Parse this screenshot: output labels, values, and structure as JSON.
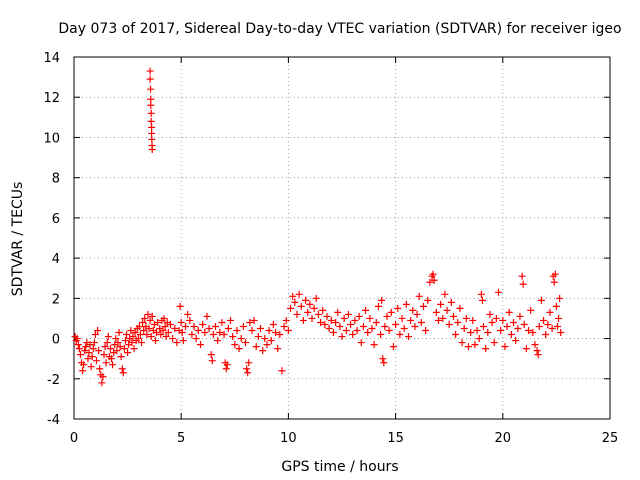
{
  "chart_data": {
    "type": "scatter",
    "title": "Day 073 of 2017, Sidereal Day-to-day VTEC variation (SDTVAR) for receiver igeo",
    "xlabel": "GPS time / hours",
    "ylabel": "SDTVAR / TECUs",
    "xlim": [
      0,
      25
    ],
    "ylim": [
      -4,
      14
    ],
    "xticks": [
      "0",
      "5",
      "10",
      "15",
      "20",
      "25"
    ],
    "yticks": [
      "-4",
      "-2",
      "0",
      "2",
      "4",
      "6",
      "8",
      "10",
      "12",
      "14"
    ],
    "grid": true,
    "marker": "+",
    "color": "#ff0000",
    "series": [
      {
        "name": "SDTVAR",
        "points": [
          [
            0.05,
            0.1
          ],
          [
            0.1,
            -0.1
          ],
          [
            0.15,
            0.0
          ],
          [
            0.2,
            -0.3
          ],
          [
            0.25,
            -0.5
          ],
          [
            0.3,
            -0.8
          ],
          [
            0.35,
            -1.2
          ],
          [
            0.4,
            -1.6
          ],
          [
            0.45,
            -1.3
          ],
          [
            0.5,
            -0.6
          ],
          [
            0.55,
            -0.4
          ],
          [
            0.6,
            -0.2
          ],
          [
            0.65,
            -1.0
          ],
          [
            0.7,
            -0.7
          ],
          [
            0.75,
            -0.3
          ],
          [
            0.8,
            -1.4
          ],
          [
            0.85,
            -0.9
          ],
          [
            0.9,
            -0.5
          ],
          [
            0.95,
            -0.2
          ],
          [
            1.0,
            0.2
          ],
          [
            1.05,
            -1.1
          ],
          [
            1.1,
            0.4
          ],
          [
            1.15,
            -0.6
          ],
          [
            1.2,
            -1.5
          ],
          [
            1.25,
            -1.8
          ],
          [
            1.3,
            -2.2
          ],
          [
            1.35,
            -1.9
          ],
          [
            1.4,
            -0.8
          ],
          [
            1.45,
            -0.4
          ],
          [
            1.5,
            -1.2
          ],
          [
            1.55,
            -0.2
          ],
          [
            1.6,
            0.1
          ],
          [
            1.65,
            -0.9
          ],
          [
            1.7,
            -0.5
          ],
          [
            1.75,
            -1.0
          ],
          [
            1.8,
            -1.3
          ],
          [
            1.85,
            -0.7
          ],
          [
            1.9,
            -0.3
          ],
          [
            1.95,
            0.0
          ],
          [
            2.0,
            -0.6
          ],
          [
            2.05,
            -0.2
          ],
          [
            2.1,
            0.3
          ],
          [
            2.15,
            -0.4
          ],
          [
            2.2,
            -0.9
          ],
          [
            2.25,
            -1.5
          ],
          [
            2.3,
            -1.7
          ],
          [
            2.35,
            -0.5
          ],
          [
            2.4,
            -0.1
          ],
          [
            2.45,
            0.2
          ],
          [
            2.5,
            -0.7
          ],
          [
            2.55,
            -0.3
          ],
          [
            2.6,
            0.0
          ],
          [
            2.65,
            0.4
          ],
          [
            2.7,
            -0.2
          ],
          [
            2.75,
            0.1
          ],
          [
            2.8,
            -0.5
          ],
          [
            2.85,
            0.3
          ],
          [
            2.9,
            -0.1
          ],
          [
            2.95,
            0.5
          ],
          [
            3.0,
            0.0
          ],
          [
            3.05,
            0.6
          ],
          [
            3.1,
            0.2
          ],
          [
            3.15,
            -0.2
          ],
          [
            3.2,
            0.8
          ],
          [
            3.25,
            0.4
          ],
          [
            3.3,
            1.0
          ],
          [
            3.35,
            0.6
          ],
          [
            3.4,
            0.2
          ],
          [
            3.45,
            1.2
          ],
          [
            3.5,
            0.5
          ],
          [
            3.55,
            0.9
          ],
          [
            3.6,
            0.1
          ],
          [
            3.65,
            1.1
          ],
          [
            3.7,
            0.4
          ],
          [
            3.75,
            0.7
          ],
          [
            3.8,
            -0.1
          ],
          [
            3.85,
            0.3
          ],
          [
            3.9,
            0.8
          ],
          [
            3.55,
            13.3
          ],
          [
            3.55,
            12.9
          ],
          [
            3.57,
            12.4
          ],
          [
            3.58,
            11.9
          ],
          [
            3.58,
            11.6
          ],
          [
            3.6,
            11.2
          ],
          [
            3.6,
            10.8
          ],
          [
            3.62,
            10.5
          ],
          [
            3.62,
            10.2
          ],
          [
            3.63,
            9.9
          ],
          [
            3.64,
            9.6
          ],
          [
            3.65,
            9.4
          ],
          [
            4.0,
            0.5
          ],
          [
            4.05,
            0.2
          ],
          [
            4.1,
            0.9
          ],
          [
            4.15,
            0.4
          ],
          [
            4.2,
            1.0
          ],
          [
            4.25,
            0.6
          ],
          [
            4.3,
            0.1
          ],
          [
            4.35,
            0.8
          ],
          [
            4.4,
            0.3
          ],
          [
            4.5,
            0.7
          ],
          [
            4.6,
            0.0
          ],
          [
            4.7,
            0.5
          ],
          [
            4.8,
            -0.2
          ],
          [
            4.9,
            0.4
          ],
          [
            4.95,
            1.6
          ],
          [
            5.0,
            0.8
          ],
          [
            5.05,
            0.3
          ],
          [
            5.1,
            -0.1
          ],
          [
            5.2,
            0.6
          ],
          [
            5.3,
            1.2
          ],
          [
            5.4,
            0.9
          ],
          [
            5.5,
            0.2
          ],
          [
            5.6,
            0.6
          ],
          [
            5.7,
            0.0
          ],
          [
            5.8,
            0.4
          ],
          [
            5.9,
            -0.3
          ],
          [
            6.0,
            0.7
          ],
          [
            6.1,
            0.3
          ],
          [
            6.2,
            1.1
          ],
          [
            6.3,
            0.5
          ],
          [
            6.4,
            -0.8
          ],
          [
            6.45,
            -1.1
          ],
          [
            6.5,
            0.2
          ],
          [
            6.6,
            0.6
          ],
          [
            6.7,
            -0.1
          ],
          [
            6.8,
            0.3
          ],
          [
            6.9,
            0.8
          ],
          [
            7.0,
            0.2
          ],
          [
            7.05,
            -1.2
          ],
          [
            7.1,
            -1.5
          ],
          [
            7.15,
            -1.3
          ],
          [
            7.2,
            0.5
          ],
          [
            7.3,
            0.9
          ],
          [
            7.4,
            0.1
          ],
          [
            7.5,
            -0.3
          ],
          [
            7.6,
            0.4
          ],
          [
            7.7,
            -0.5
          ],
          [
            7.8,
            0.0
          ],
          [
            7.9,
            0.6
          ],
          [
            8.0,
            -0.2
          ],
          [
            8.05,
            -1.5
          ],
          [
            8.1,
            -1.7
          ],
          [
            8.15,
            -1.2
          ],
          [
            8.2,
            0.8
          ],
          [
            8.3,
            0.4
          ],
          [
            8.4,
            0.9
          ],
          [
            8.5,
            -0.4
          ],
          [
            8.6,
            0.1
          ],
          [
            8.7,
            0.5
          ],
          [
            8.8,
            -0.6
          ],
          [
            8.9,
            0.0
          ],
          [
            9.0,
            -0.3
          ],
          [
            9.1,
            0.4
          ],
          [
            9.2,
            -0.1
          ],
          [
            9.3,
            0.7
          ],
          [
            9.4,
            0.3
          ],
          [
            9.5,
            -0.5
          ],
          [
            9.6,
            0.2
          ],
          [
            9.7,
            -1.6
          ],
          [
            9.8,
            0.6
          ],
          [
            9.9,
            0.9
          ],
          [
            10.0,
            0.4
          ],
          [
            10.1,
            1.5
          ],
          [
            10.2,
            2.1
          ],
          [
            10.3,
            1.8
          ],
          [
            10.4,
            1.2
          ],
          [
            10.5,
            2.2
          ],
          [
            10.6,
            1.6
          ],
          [
            10.7,
            0.9
          ],
          [
            10.8,
            1.9
          ],
          [
            10.9,
            1.3
          ],
          [
            11.0,
            1.7
          ],
          [
            11.1,
            1.0
          ],
          [
            11.2,
            1.5
          ],
          [
            11.3,
            2.0
          ],
          [
            11.4,
            1.2
          ],
          [
            11.5,
            0.8
          ],
          [
            11.6,
            1.4
          ],
          [
            11.7,
            0.7
          ],
          [
            11.8,
            1.1
          ],
          [
            11.9,
            0.5
          ],
          [
            12.0,
            0.9
          ],
          [
            12.1,
            0.3
          ],
          [
            12.2,
            0.8
          ],
          [
            12.3,
            1.3
          ],
          [
            12.4,
            0.6
          ],
          [
            12.5,
            0.1
          ],
          [
            12.6,
            1.0
          ],
          [
            12.7,
            0.4
          ],
          [
            12.8,
            1.2
          ],
          [
            12.9,
            0.7
          ],
          [
            13.0,
            0.2
          ],
          [
            13.1,
            0.9
          ],
          [
            13.2,
            0.4
          ],
          [
            13.3,
            1.1
          ],
          [
            13.4,
            -0.2
          ],
          [
            13.5,
            0.6
          ],
          [
            13.6,
            1.4
          ],
          [
            13.7,
            0.3
          ],
          [
            13.8,
            1.0
          ],
          [
            13.9,
            0.5
          ],
          [
            14.0,
            -0.3
          ],
          [
            14.1,
            0.8
          ],
          [
            14.2,
            1.6
          ],
          [
            14.3,
            0.2
          ],
          [
            14.35,
            1.9
          ],
          [
            14.4,
            -1.0
          ],
          [
            14.45,
            -1.2
          ],
          [
            14.5,
            0.6
          ],
          [
            14.6,
            1.1
          ],
          [
            14.7,
            0.4
          ],
          [
            14.8,
            1.3
          ],
          [
            14.9,
            -0.4
          ],
          [
            15.0,
            0.7
          ],
          [
            15.1,
            1.5
          ],
          [
            15.2,
            0.2
          ],
          [
            15.3,
            1.0
          ],
          [
            15.4,
            0.5
          ],
          [
            15.5,
            1.7
          ],
          [
            15.6,
            0.1
          ],
          [
            15.7,
            0.9
          ],
          [
            15.8,
            1.4
          ],
          [
            15.9,
            0.6
          ],
          [
            16.0,
            1.2
          ],
          [
            16.1,
            2.1
          ],
          [
            16.2,
            0.8
          ],
          [
            16.3,
            1.6
          ],
          [
            16.4,
            0.4
          ],
          [
            16.5,
            1.9
          ],
          [
            16.6,
            2.8
          ],
          [
            16.7,
            3.1
          ],
          [
            16.75,
            3.2
          ],
          [
            16.8,
            2.9
          ],
          [
            16.9,
            1.3
          ],
          [
            17.0,
            0.9
          ],
          [
            17.1,
            1.7
          ],
          [
            17.2,
            1.0
          ],
          [
            17.3,
            2.2
          ],
          [
            17.4,
            1.4
          ],
          [
            17.5,
            0.7
          ],
          [
            17.6,
            1.8
          ],
          [
            17.7,
            1.1
          ],
          [
            17.8,
            0.2
          ],
          [
            17.9,
            0.8
          ],
          [
            18.0,
            1.5
          ],
          [
            18.1,
            -0.2
          ],
          [
            18.2,
            0.5
          ],
          [
            18.3,
            1.0
          ],
          [
            18.4,
            -0.4
          ],
          [
            18.5,
            0.3
          ],
          [
            18.6,
            0.9
          ],
          [
            18.7,
            -0.3
          ],
          [
            18.8,
            0.4
          ],
          [
            18.9,
            0.0
          ],
          [
            19.0,
            2.2
          ],
          [
            19.05,
            1.9
          ],
          [
            19.1,
            0.6
          ],
          [
            19.2,
            -0.5
          ],
          [
            19.3,
            0.3
          ],
          [
            19.4,
            1.2
          ],
          [
            19.5,
            0.8
          ],
          [
            19.6,
            -0.2
          ],
          [
            19.7,
            1.0
          ],
          [
            19.8,
            2.3
          ],
          [
            19.9,
            0.4
          ],
          [
            20.0,
            0.9
          ],
          [
            20.1,
            -0.4
          ],
          [
            20.2,
            0.6
          ],
          [
            20.3,
            1.3
          ],
          [
            20.4,
            0.2
          ],
          [
            20.5,
            0.8
          ],
          [
            20.6,
            -0.1
          ],
          [
            20.7,
            0.5
          ],
          [
            20.8,
            1.1
          ],
          [
            20.9,
            3.1
          ],
          [
            20.95,
            2.7
          ],
          [
            21.0,
            0.7
          ],
          [
            21.1,
            -0.5
          ],
          [
            21.2,
            0.4
          ],
          [
            21.3,
            1.4
          ],
          [
            21.4,
            0.3
          ],
          [
            21.5,
            -0.3
          ],
          [
            21.6,
            -0.6
          ],
          [
            21.65,
            -0.8
          ],
          [
            21.7,
            0.6
          ],
          [
            21.8,
            1.9
          ],
          [
            21.9,
            0.9
          ],
          [
            22.0,
            0.2
          ],
          [
            22.1,
            0.7
          ],
          [
            22.2,
            1.3
          ],
          [
            22.3,
            0.5
          ],
          [
            22.35,
            3.1
          ],
          [
            22.4,
            2.8
          ],
          [
            22.45,
            3.2
          ],
          [
            22.5,
            1.6
          ],
          [
            22.55,
            0.6
          ],
          [
            22.6,
            1.0
          ],
          [
            22.65,
            2.0
          ],
          [
            22.7,
            0.3
          ]
        ]
      }
    ]
  }
}
